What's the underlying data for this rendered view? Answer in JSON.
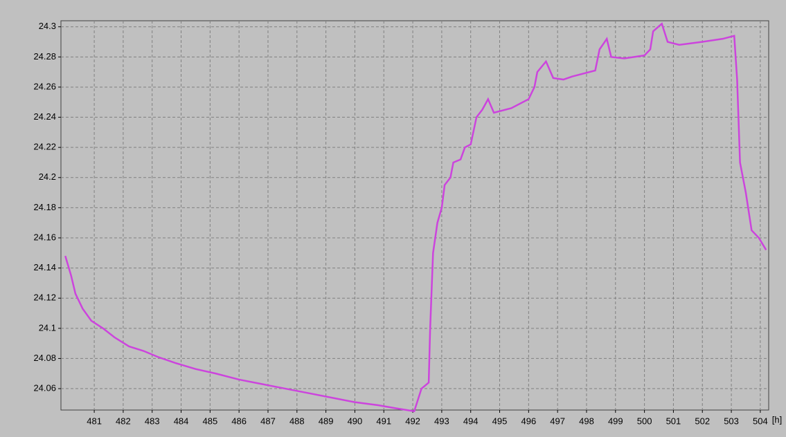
{
  "chart_data": {
    "type": "line",
    "xlabel": "[h]",
    "color": "#cc44dd",
    "grid": true,
    "x": [
      480.0,
      480.2,
      480.35,
      480.6,
      480.9,
      481.3,
      481.7,
      482.2,
      482.7,
      483.2,
      483.8,
      484.5,
      485.2,
      486.0,
      486.8,
      487.6,
      488.4,
      489.2,
      490.0,
      490.8,
      491.4,
      492.05,
      492.3,
      492.55,
      492.6,
      492.7,
      492.85,
      493.0,
      493.1,
      493.3,
      493.4,
      493.65,
      493.8,
      494.0,
      494.2,
      494.4,
      494.6,
      494.8,
      495.4,
      496.0,
      496.2,
      496.3,
      496.6,
      496.85,
      497.2,
      497.5,
      498.3,
      498.45,
      498.7,
      498.85,
      499.3,
      500.0,
      500.2,
      500.3,
      500.6,
      500.8,
      501.2,
      502.0,
      502.7,
      503.1,
      503.2,
      503.3,
      503.5,
      503.7,
      503.95,
      504.2
    ],
    "values": [
      24.148,
      24.135,
      24.123,
      24.113,
      24.105,
      24.1,
      24.094,
      24.088,
      24.085,
      24.081,
      24.077,
      24.073,
      24.07,
      24.066,
      24.063,
      24.06,
      24.057,
      24.054,
      24.051,
      24.049,
      24.047,
      24.045,
      24.06,
      24.064,
      24.1,
      24.15,
      24.17,
      24.18,
      24.195,
      24.2,
      24.21,
      24.212,
      24.22,
      24.222,
      24.24,
      24.245,
      24.252,
      24.243,
      24.246,
      24.252,
      24.26,
      24.27,
      24.277,
      24.266,
      24.265,
      24.267,
      24.271,
      24.285,
      24.292,
      24.28,
      24.279,
      24.281,
      24.285,
      24.297,
      24.302,
      24.29,
      24.288,
      24.29,
      24.292,
      24.294,
      24.265,
      24.21,
      24.19,
      24.165,
      24.16,
      24.152
    ],
    "xlim": [
      479.85,
      504.29
    ],
    "ylim": [
      24.0458,
      24.304
    ],
    "xticks": [
      481,
      482,
      483,
      484,
      485,
      486,
      487,
      488,
      489,
      490,
      491,
      492,
      493,
      494,
      495,
      496,
      497,
      498,
      499,
      500,
      501,
      502,
      503,
      504
    ],
    "yticks": [
      24.06,
      24.08,
      24.1,
      24.12,
      24.14,
      24.16,
      24.18,
      24.2,
      24.22,
      24.24,
      24.26,
      24.28,
      24.3
    ]
  }
}
